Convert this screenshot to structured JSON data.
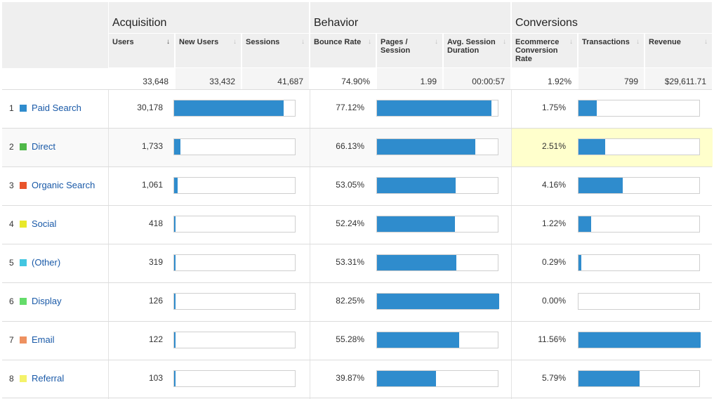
{
  "groups": [
    "Acquisition",
    "Behavior",
    "Conversions"
  ],
  "columns": {
    "users": "Users",
    "new_users": "New Users",
    "sessions": "Sessions",
    "bounce_rate": "Bounce Rate",
    "pages_session": "Pages / Session",
    "avg_duration": "Avg. Session Duration",
    "ecom_rate": "Ecommerce Conversion Rate",
    "transactions": "Transactions",
    "revenue": "Revenue"
  },
  "sort_arrow": "↓",
  "totals": {
    "users": "33,648",
    "new_users": "33,432",
    "sessions": "41,687",
    "bounce_rate": "74.90%",
    "pages_session": "1.99",
    "avg_duration": "00:00:57",
    "ecom_rate": "1.92%",
    "transactions": "799",
    "revenue": "$29,611.71"
  },
  "rows": [
    {
      "num": "1",
      "label": "Paid Search",
      "color": "#2f8ccd",
      "users": "30,178",
      "users_pct": 0.897,
      "bounce": "77.12%",
      "bounce_pct": 0.9377,
      "ecom": "1.75%",
      "ecom_pct": 0.1515
    },
    {
      "num": "2",
      "label": "Direct",
      "color": "#4fb848",
      "users": "1,733",
      "users_pct": 0.0515,
      "bounce": "66.13%",
      "bounce_pct": 0.804,
      "ecom": "2.51%",
      "ecom_pct": 0.2173
    },
    {
      "num": "3",
      "label": "Organic Search",
      "color": "#e9542b",
      "users": "1,061",
      "users_pct": 0.0315,
      "bounce": "53.05%",
      "bounce_pct": 0.645,
      "ecom": "4.16%",
      "ecom_pct": 0.3601
    },
    {
      "num": "4",
      "label": "Social",
      "color": "#e8e82a",
      "users": "418",
      "users_pct": 0.0124,
      "bounce": "52.24%",
      "bounce_pct": 0.6351,
      "ecom": "1.22%",
      "ecom_pct": 0.1056
    },
    {
      "num": "5",
      "label": "(Other)",
      "color": "#43c6e1",
      "users": "319",
      "users_pct": 0.0095,
      "bounce": "53.31%",
      "bounce_pct": 0.6481,
      "ecom": "0.29%",
      "ecom_pct": 0.0251
    },
    {
      "num": "6",
      "label": "Display",
      "color": "#64dc6a",
      "users": "126",
      "users_pct": 0.0037,
      "bounce": "82.25%",
      "bounce_pct": 1.0,
      "ecom": "0.00%",
      "ecom_pct": 0.0
    },
    {
      "num": "7",
      "label": "Email",
      "color": "#ee9160",
      "users": "122",
      "users_pct": 0.0036,
      "bounce": "55.28%",
      "bounce_pct": 0.6721,
      "ecom": "11.56%",
      "ecom_pct": 1.0
    },
    {
      "num": "8",
      "label": "Referral",
      "color": "#f4f26a",
      "users": "103",
      "users_pct": 0.0031,
      "bounce": "39.87%",
      "bounce_pct": 0.4847,
      "ecom": "5.79%",
      "ecom_pct": 0.5009
    }
  ]
}
